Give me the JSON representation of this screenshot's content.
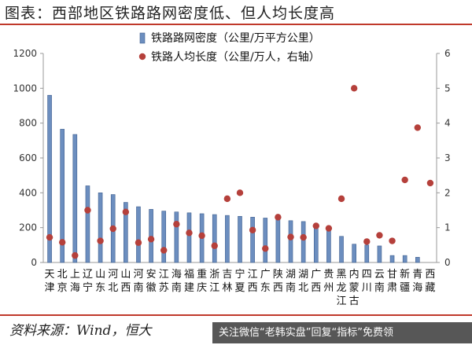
{
  "header": {
    "title": "图表：西部地区铁路路网密度低、但人均长度高"
  },
  "footer": {
    "source": "资料来源：Wind，恒大"
  },
  "watermark": {
    "text": "关注微信“老韩实盘”回复“指标”免费领"
  },
  "colors": {
    "bar": "#6c8ebf",
    "bar_dark": "#3f5f8f",
    "dot": "#b5403b",
    "axis": "#999999",
    "accent": "#c0392b"
  },
  "chart_data": {
    "type": "bar",
    "categories": [
      "天津",
      "北京",
      "上海",
      "辽宁",
      "山东",
      "河北",
      "山西",
      "河南",
      "安徽",
      "江苏",
      "海南",
      "福建",
      "重庆",
      "浙江",
      "吉林",
      "宁夏",
      "江西",
      "广东",
      "陕西",
      "湖南",
      "湖北",
      "广西",
      "贵州",
      "黑龙江",
      "内蒙古",
      "四川",
      "云南",
      "甘肃",
      "新疆",
      "青海",
      "西藏"
    ],
    "category_lines": [
      [
        "天",
        "津"
      ],
      [
        "北",
        "京"
      ],
      [
        "上",
        "海"
      ],
      [
        "辽",
        "宁"
      ],
      [
        "山",
        "东"
      ],
      [
        "河",
        "北"
      ],
      [
        "山",
        "西"
      ],
      [
        "河",
        "南"
      ],
      [
        "安",
        "徽"
      ],
      [
        "江",
        "苏"
      ],
      [
        "海",
        "南"
      ],
      [
        "福",
        "建"
      ],
      [
        "重",
        "庆"
      ],
      [
        "浙",
        "江"
      ],
      [
        "吉",
        "林"
      ],
      [
        "宁",
        "夏"
      ],
      [
        "江",
        "西"
      ],
      [
        "广",
        "东"
      ],
      [
        "陕",
        "西"
      ],
      [
        "湖",
        "南"
      ],
      [
        "湖",
        "北"
      ],
      [
        "广",
        "西"
      ],
      [
        "贵",
        "州"
      ],
      [
        "黑",
        "龙",
        "江"
      ],
      [
        "内",
        "蒙",
        "古"
      ],
      [
        "四",
        "川"
      ],
      [
        "云",
        "南"
      ],
      [
        "甘",
        "肃"
      ],
      [
        "新",
        "疆"
      ],
      [
        "青",
        "海"
      ],
      [
        "西",
        "藏"
      ]
    ],
    "series": [
      {
        "name": "铁路路网密度（公里/万平方公里）",
        "axis": "left",
        "type": "bar",
        "values": [
          960,
          765,
          735,
          440,
          400,
          390,
          345,
          320,
          305,
          295,
          290,
          285,
          280,
          275,
          270,
          265,
          260,
          255,
          250,
          240,
          235,
          200,
          195,
          150,
          105,
          100,
          95,
          40,
          40,
          30,
          0
        ]
      },
      {
        "name": "铁路人均长度（公里/万人，右轴）",
        "axis": "right",
        "type": "scatter",
        "values": [
          0.72,
          0.58,
          0.2,
          1.5,
          0.62,
          0.97,
          1.45,
          0.57,
          0.67,
          0.35,
          1.1,
          0.85,
          0.77,
          0.48,
          1.83,
          2.0,
          0.93,
          0.4,
          1.3,
          0.73,
          0.72,
          1.05,
          0.98,
          1.83,
          5.0,
          0.6,
          0.78,
          0.62,
          2.37,
          3.87,
          2.28
        ]
      }
    ],
    "y_left": {
      "min": 0,
      "max": 1200,
      "ticks": [
        0,
        200,
        400,
        600,
        800,
        1000,
        1200
      ]
    },
    "y_right": {
      "min": 0,
      "max": 6,
      "ticks": [
        0,
        1,
        2,
        3,
        4,
        5,
        6
      ]
    },
    "legend": "top-center",
    "grid": false
  }
}
